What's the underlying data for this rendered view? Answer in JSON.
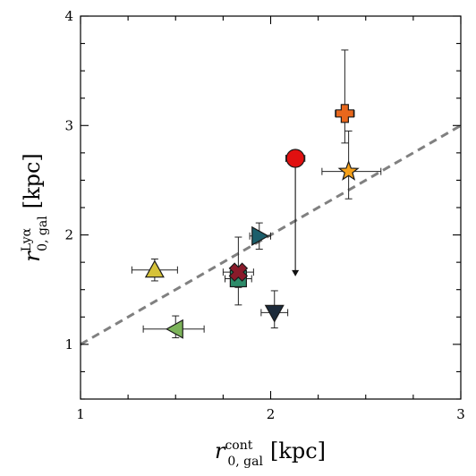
{
  "chart_data": {
    "type": "scatter",
    "xlabel": {
      "base": "r",
      "superscript": "cont",
      "subscript": "0, gal",
      "unit": "[kpc]"
    },
    "ylabel": {
      "base": "r",
      "superscript": "Lyα",
      "subscript": "0, gal",
      "unit": "[kpc]"
    },
    "xlim": [
      1,
      3
    ],
    "ylim": [
      0.5,
      4
    ],
    "x_ticks": [
      "1",
      "2",
      "3"
    ],
    "y_ticks": [
      "1",
      "2",
      "3",
      "4"
    ],
    "reference_line": {
      "slope": 1,
      "intercept": 0,
      "style": "dashed",
      "color": "#808080"
    },
    "points": [
      {
        "marker": "plus",
        "color": "#e8671c",
        "x": 2.39,
        "y": 3.11,
        "xerr": [
          0.05,
          0.05
        ],
        "yerr": [
          0.27,
          0.58
        ]
      },
      {
        "marker": "star",
        "color": "#f5a01a",
        "x": 2.41,
        "y": 2.58,
        "xerr": [
          0.14,
          0.17
        ],
        "yerr": [
          0.25,
          0.37
        ]
      },
      {
        "marker": "circle",
        "color": "#e01010",
        "x": 2.13,
        "y": 2.7,
        "xerr": [
          0.05,
          0.05
        ],
        "yerr": null,
        "upper_limit": 1.63
      },
      {
        "marker": "triangle-right",
        "color": "#1b5e6b",
        "x": 1.94,
        "y": 1.99,
        "xerr": [
          0.05,
          0.06
        ],
        "yerr": [
          0.12,
          0.12
        ]
      },
      {
        "marker": "triangle-up",
        "color": "#d6c23a",
        "x": 1.39,
        "y": 1.68,
        "xerr": [
          0.12,
          0.12
        ],
        "yerr": [
          0.1,
          0.1
        ]
      },
      {
        "marker": "square",
        "color": "#2e8c6a",
        "x": 1.83,
        "y": 1.6,
        "xerr": [
          0.07,
          0.07
        ],
        "yerr": [
          0.08,
          0.08
        ]
      },
      {
        "marker": "x",
        "color": "#8a1a2a",
        "x": 1.83,
        "y": 1.66,
        "xerr": [
          0.08,
          0.08
        ],
        "yerr": [
          0.3,
          0.32
        ]
      },
      {
        "marker": "triangle-down",
        "color": "#1c2a3a",
        "x": 2.02,
        "y": 1.29,
        "xerr": [
          0.07,
          0.07
        ],
        "yerr": [
          0.14,
          0.2
        ]
      },
      {
        "marker": "triangle-left",
        "color": "#7cb35a",
        "x": 1.5,
        "y": 1.14,
        "xerr": [
          0.17,
          0.15
        ],
        "yerr": [
          0.08,
          0.12
        ]
      }
    ]
  }
}
